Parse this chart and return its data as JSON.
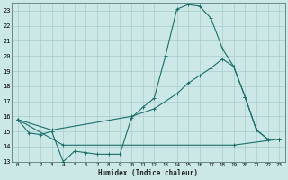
{
  "xlabel": "Humidex (Indice chaleur)",
  "bg_color": "#cce8e6",
  "grid_color": "#aacccc",
  "line_color": "#1a6e6a",
  "xlim": [
    -0.5,
    23.5
  ],
  "ylim": [
    13.0,
    23.5
  ],
  "xticks": [
    0,
    1,
    2,
    3,
    4,
    5,
    6,
    7,
    8,
    9,
    10,
    11,
    12,
    13,
    14,
    15,
    16,
    17,
    18,
    19,
    20,
    21,
    22,
    23
  ],
  "yticks": [
    13,
    14,
    15,
    16,
    17,
    18,
    19,
    20,
    21,
    22,
    23
  ],
  "line1_x": [
    0,
    1,
    2,
    3,
    4,
    5,
    6,
    7,
    8,
    9,
    10,
    11,
    12,
    13,
    14,
    15,
    16,
    17,
    18,
    19,
    20,
    21,
    22,
    23
  ],
  "line1_y": [
    15.8,
    14.9,
    14.8,
    15.0,
    13.0,
    13.7,
    13.6,
    13.5,
    13.5,
    13.5,
    15.9,
    16.6,
    17.2,
    20.0,
    23.1,
    23.4,
    23.3,
    22.5,
    20.5,
    19.3,
    17.3,
    15.1,
    14.5,
    14.5
  ],
  "line2_x": [
    0,
    3,
    10,
    12,
    14,
    15,
    16,
    17,
    18,
    19,
    20,
    21,
    22,
    23
  ],
  "line2_y": [
    15.8,
    15.1,
    16.0,
    16.5,
    17.5,
    18.2,
    18.7,
    19.2,
    19.8,
    19.3,
    17.3,
    15.1,
    14.5,
    14.5
  ],
  "line3_x": [
    0,
    4,
    19,
    23
  ],
  "line3_y": [
    15.8,
    14.1,
    14.1,
    14.5
  ]
}
